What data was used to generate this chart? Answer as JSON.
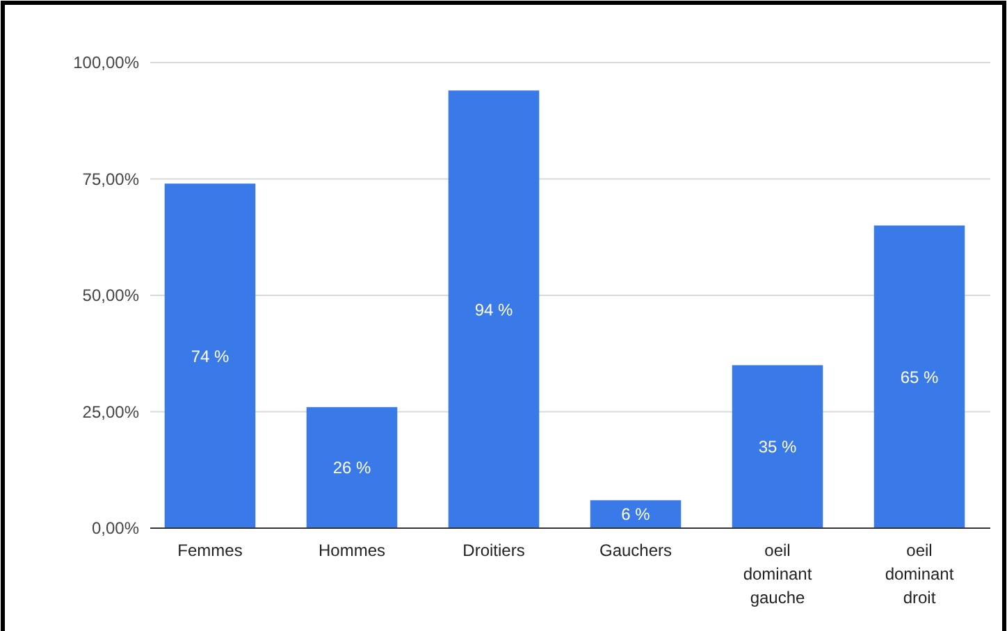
{
  "chart_data": {
    "type": "bar",
    "categories": [
      "Femmes",
      "Hommes",
      "Droitiers",
      "Gauchers",
      "oeil dominant gauche",
      "oeil dominant droit"
    ],
    "values": [
      74,
      26,
      94,
      6,
      35,
      65
    ],
    "value_labels": [
      "74 %",
      "26 %",
      "94 %",
      "6 %",
      "35 %",
      "65 %"
    ],
    "color": "#3a79e8",
    "ylim": [
      0,
      100
    ],
    "yticks": [
      {
        "value": 0,
        "label": "0,00%"
      },
      {
        "value": 25,
        "label": "25,00%"
      },
      {
        "value": 50,
        "label": "50,00%"
      },
      {
        "value": 75,
        "label": "75,00%"
      },
      {
        "value": 100,
        "label": "100,00%"
      }
    ],
    "grid": "y"
  }
}
